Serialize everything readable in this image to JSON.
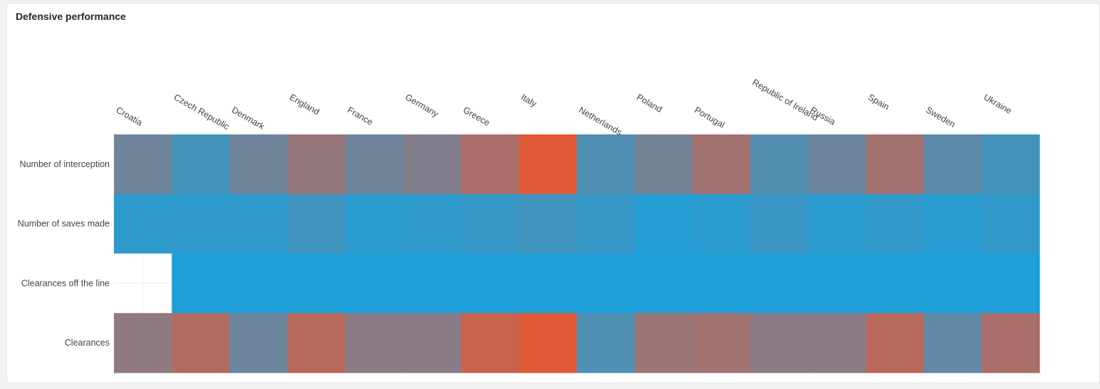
{
  "panel": {
    "title": "Defensive performance"
  },
  "chart_data": {
    "type": "heatmap",
    "title": "Defensive performance",
    "x_categories": [
      "Croatia",
      "Czech Republic",
      "Denmark",
      "England",
      "France",
      "Germany",
      "Greece",
      "Italy",
      "Netherlands",
      "Poland",
      "Portugal",
      "Republic of Ireland",
      "Russia",
      "Spain",
      "Sweden",
      "Ukraine"
    ],
    "y_categories": [
      "Number of interception",
      "Number of saves made",
      "Clearances off the line",
      "Clearances"
    ],
    "values_normalized": [
      [
        0.42,
        0.2,
        0.42,
        0.62,
        0.42,
        0.52,
        0.72,
        1.0,
        0.26,
        0.45,
        0.68,
        0.28,
        0.4,
        0.68,
        0.32,
        0.2
      ],
      [
        0.08,
        0.08,
        0.08,
        0.18,
        0.06,
        0.08,
        0.12,
        0.18,
        0.12,
        0.03,
        0.06,
        0.14,
        0.06,
        0.1,
        0.05,
        0.1
      ],
      [
        null,
        0.0,
        0.0,
        0.0,
        0.0,
        0.0,
        0.0,
        0.0,
        0.0,
        0.0,
        0.0,
        0.0,
        0.0,
        0.0,
        0.0,
        0.0
      ],
      [
        0.58,
        0.76,
        0.4,
        0.8,
        0.55,
        0.55,
        0.88,
        1.0,
        0.25,
        0.64,
        0.68,
        0.55,
        0.55,
        0.8,
        0.35,
        0.72
      ]
    ],
    "color_scale": {
      "low": "#1e9fd8",
      "mid": "#7f8090",
      "high": "#e05a38"
    },
    "missing_color": "#ffffff",
    "legend": "none",
    "grid": false
  }
}
